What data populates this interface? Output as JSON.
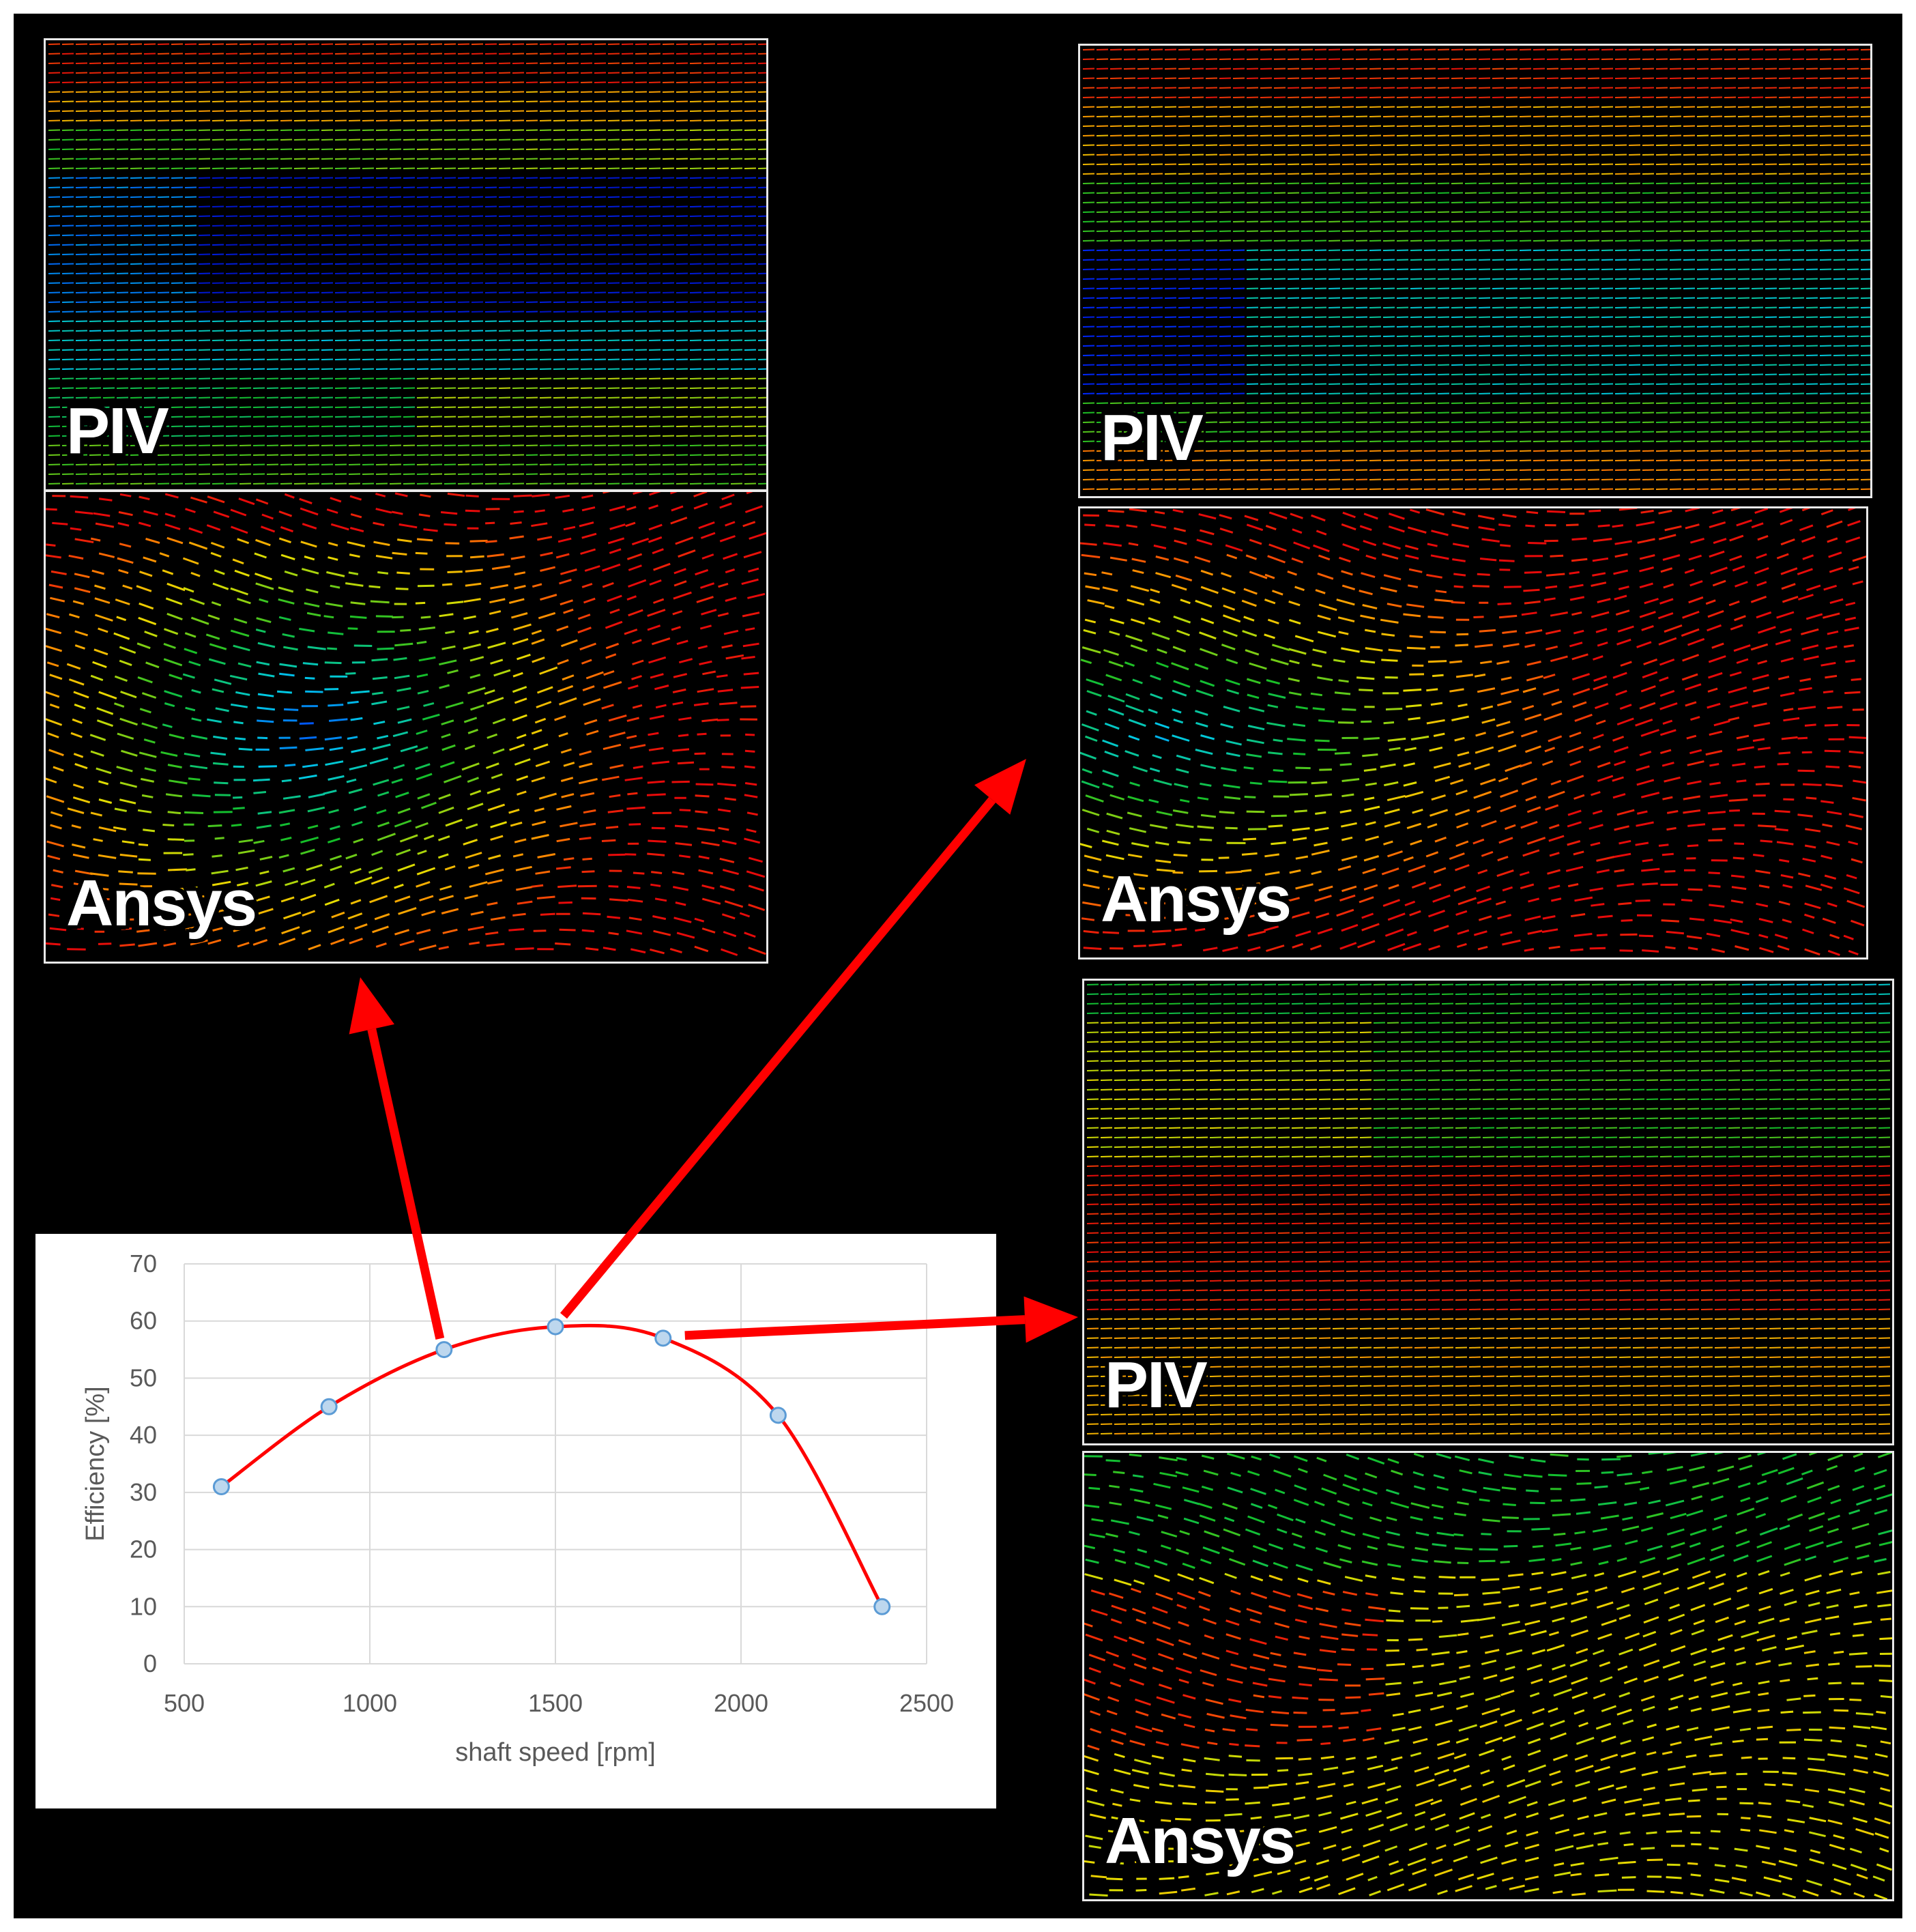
{
  "panels": {
    "top_left": {
      "piv_label": "PIV",
      "ansys_label": "Ansys"
    },
    "top_right": {
      "piv_label": "PIV",
      "ansys_label": "Ansys"
    },
    "bottom_right": {
      "piv_label": "PIV",
      "ansys_label": "Ansys"
    }
  },
  "colors": {
    "curve": "#ff0000",
    "arrow": "#ff0000",
    "marker_fill": "#bdd7ee",
    "marker_stroke": "#5b9bd5",
    "grid": "#d9d9d9"
  },
  "chart_data": {
    "type": "line",
    "x": [
      600,
      890,
      1200,
      1500,
      1790,
      2100,
      2380
    ],
    "series": [
      {
        "values": [
          31,
          45,
          55,
          59,
          57,
          43.5,
          10
        ]
      }
    ],
    "xlabel": "shaft speed  [rpm]",
    "ylabel": "Efficiency [%]",
    "xlim": [
      500,
      2500
    ],
    "ylim": [
      0,
      70
    ],
    "xticks": [
      500,
      1000,
      1500,
      2000,
      2500
    ],
    "yticks": [
      0,
      10,
      20,
      30,
      40,
      50,
      60,
      70
    ],
    "grid": true,
    "legend": "none"
  }
}
